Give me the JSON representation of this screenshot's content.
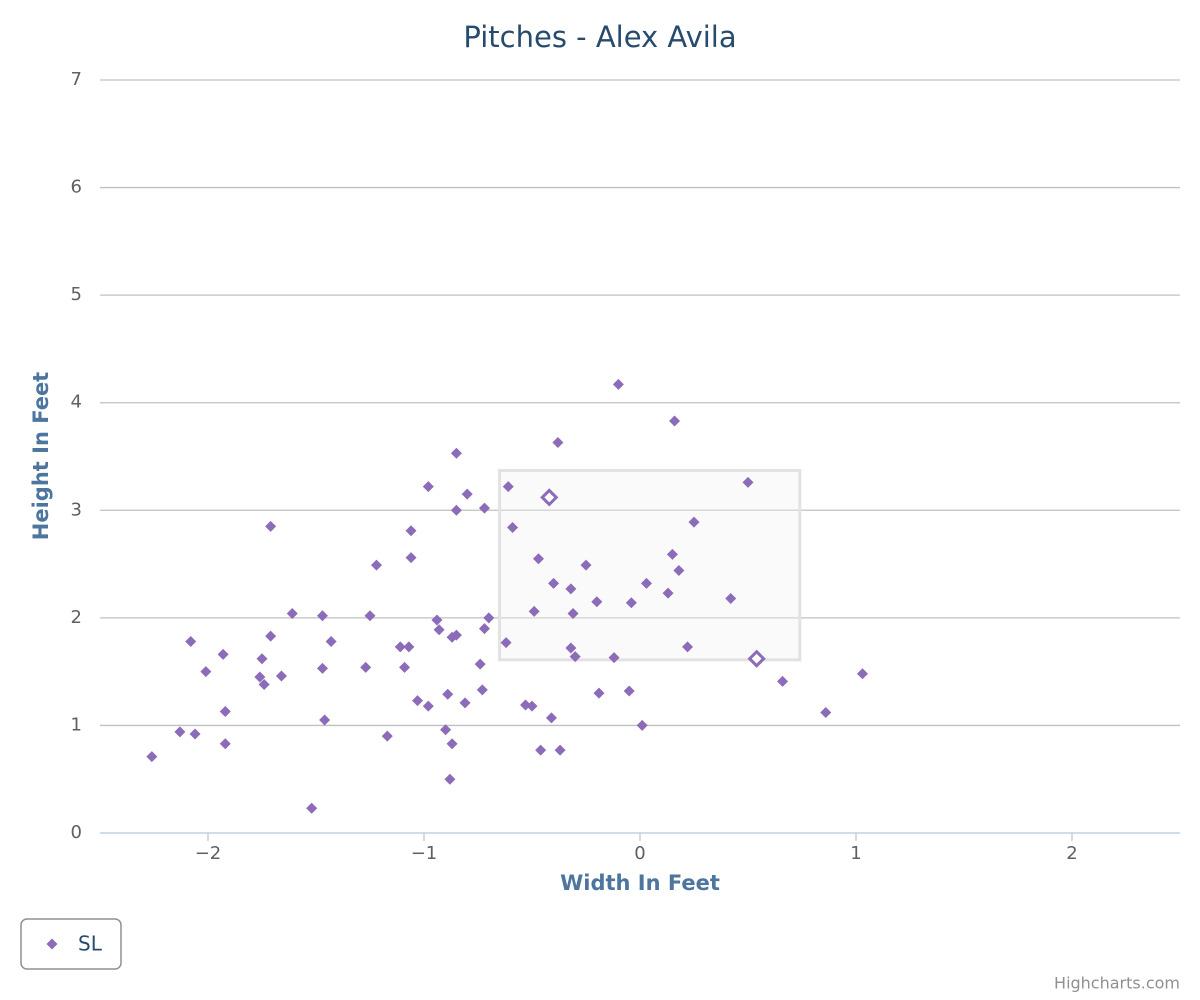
{
  "chart_data": {
    "type": "scatter",
    "title": "Pitches - Alex Avila",
    "x_label": "Width In Feet",
    "y_label": "Height In Feet",
    "credits": "Highcharts.com",
    "xlim": [
      -2.5,
      2.5
    ],
    "xticks": [
      {
        "value": -2,
        "label": "−2"
      },
      {
        "value": -1,
        "label": "−1"
      },
      0,
      1,
      2
    ],
    "ylim": [
      0,
      7
    ],
    "yticks": [
      0,
      1,
      2,
      3,
      4,
      5,
      6,
      7
    ],
    "grid": true,
    "legend": "bottom-left",
    "strike_zone": {
      "x": [
        -0.65,
        0.74
      ],
      "y": [
        1.61,
        3.37
      ]
    },
    "series": [
      {
        "name": "SL",
        "color": "#8c6bb9",
        "marker": "diamond",
        "x": [
          -0.1,
          0.16,
          -0.38,
          -0.85,
          0.5,
          -0.98,
          -0.61,
          -0.8,
          -0.85,
          -0.72,
          -1.71,
          -0.59,
          0.25,
          -1.06,
          -1.06,
          -0.47,
          -0.25,
          -1.22,
          0.15,
          0.18,
          -0.4,
          0.03,
          -0.32,
          0.13,
          0.42,
          -0.2,
          -0.04,
          -0.49,
          -0.31,
          -1.61,
          -1.47,
          -1.25,
          -0.7,
          -0.94,
          -0.93,
          -0.72,
          -0.85,
          -0.87,
          -1.71,
          -2.08,
          -1.43,
          -0.62,
          -1.11,
          -1.07,
          0.22,
          -0.32,
          -0.3,
          -1.93,
          -1.75,
          -0.12,
          -0.74,
          -1.09,
          -1.27,
          -1.47,
          -2.01,
          -1.66,
          -1.76,
          1.03,
          -1.74,
          0.66,
          -0.73,
          -0.05,
          -0.19,
          -0.89,
          -1.03,
          -0.81,
          -0.53,
          -0.5,
          -0.98,
          -1.92,
          0.86,
          -0.41,
          -1.46,
          0.01,
          -0.9,
          -2.13,
          -2.06,
          -1.17,
          -1.92,
          -0.87,
          -0.46,
          -0.37,
          -2.26,
          -0.88,
          -1.52
        ],
        "values": [
          4.17,
          3.83,
          3.63,
          3.53,
          3.26,
          3.22,
          3.22,
          3.15,
          3.0,
          3.02,
          2.85,
          2.84,
          2.89,
          2.81,
          2.56,
          2.55,
          2.49,
          2.49,
          2.59,
          2.44,
          2.32,
          2.32,
          2.27,
          2.23,
          2.18,
          2.15,
          2.14,
          2.06,
          2.04,
          2.04,
          2.02,
          2.02,
          2.0,
          1.98,
          1.89,
          1.9,
          1.84,
          1.82,
          1.83,
          1.78,
          1.78,
          1.77,
          1.73,
          1.73,
          1.73,
          1.72,
          1.64,
          1.66,
          1.62,
          1.63,
          1.57,
          1.54,
          1.54,
          1.53,
          1.5,
          1.46,
          1.45,
          1.48,
          1.38,
          1.41,
          1.33,
          1.32,
          1.3,
          1.29,
          1.23,
          1.21,
          1.19,
          1.18,
          1.18,
          1.13,
          1.12,
          1.07,
          1.05,
          1.0,
          0.96,
          0.94,
          0.92,
          0.9,
          0.83,
          0.83,
          0.77,
          0.77,
          0.71,
          0.5,
          0.23
        ]
      },
      {
        "color": "#8c6bb9",
        "marker": "hollow",
        "x": [
          -0.42,
          0.54
        ],
        "values": [
          3.12,
          1.62
        ]
      }
    ]
  }
}
